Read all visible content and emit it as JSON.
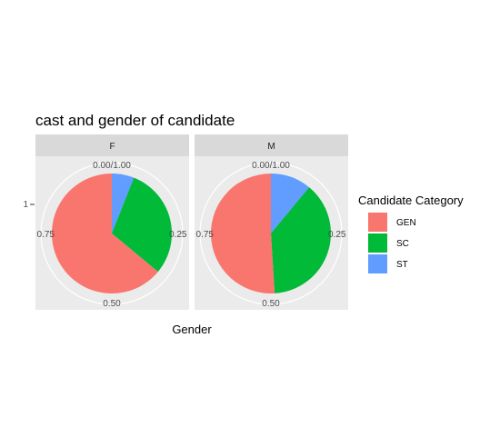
{
  "chart_data": {
    "type": "pie",
    "title": "cast and gender of candidate",
    "xlabel": "Gender",
    "ylabel": "",
    "y_tick_label": "1",
    "angle_ticks": [
      {
        "value": 0.0,
        "label": "0.00/1.00"
      },
      {
        "value": 0.25,
        "label": "0.25"
      },
      {
        "value": 0.5,
        "label": "0.50"
      },
      {
        "value": 0.75,
        "label": "0.75"
      }
    ],
    "legend": {
      "title": "Candidate Category",
      "position": "right",
      "entries": [
        {
          "name": "GEN",
          "color": "#F8766D"
        },
        {
          "name": "SC",
          "color": "#00BA38"
        },
        {
          "name": "ST",
          "color": "#619CFF"
        }
      ]
    },
    "facets": [
      {
        "label": "F",
        "slices": [
          {
            "category": "ST",
            "value": 0.06
          },
          {
            "category": "SC",
            "value": 0.3
          },
          {
            "category": "GEN",
            "value": 0.64
          }
        ]
      },
      {
        "label": "M",
        "slices": [
          {
            "category": "ST",
            "value": 0.11
          },
          {
            "category": "SC",
            "value": 0.38
          },
          {
            "category": "GEN",
            "value": 0.51
          }
        ]
      }
    ]
  }
}
